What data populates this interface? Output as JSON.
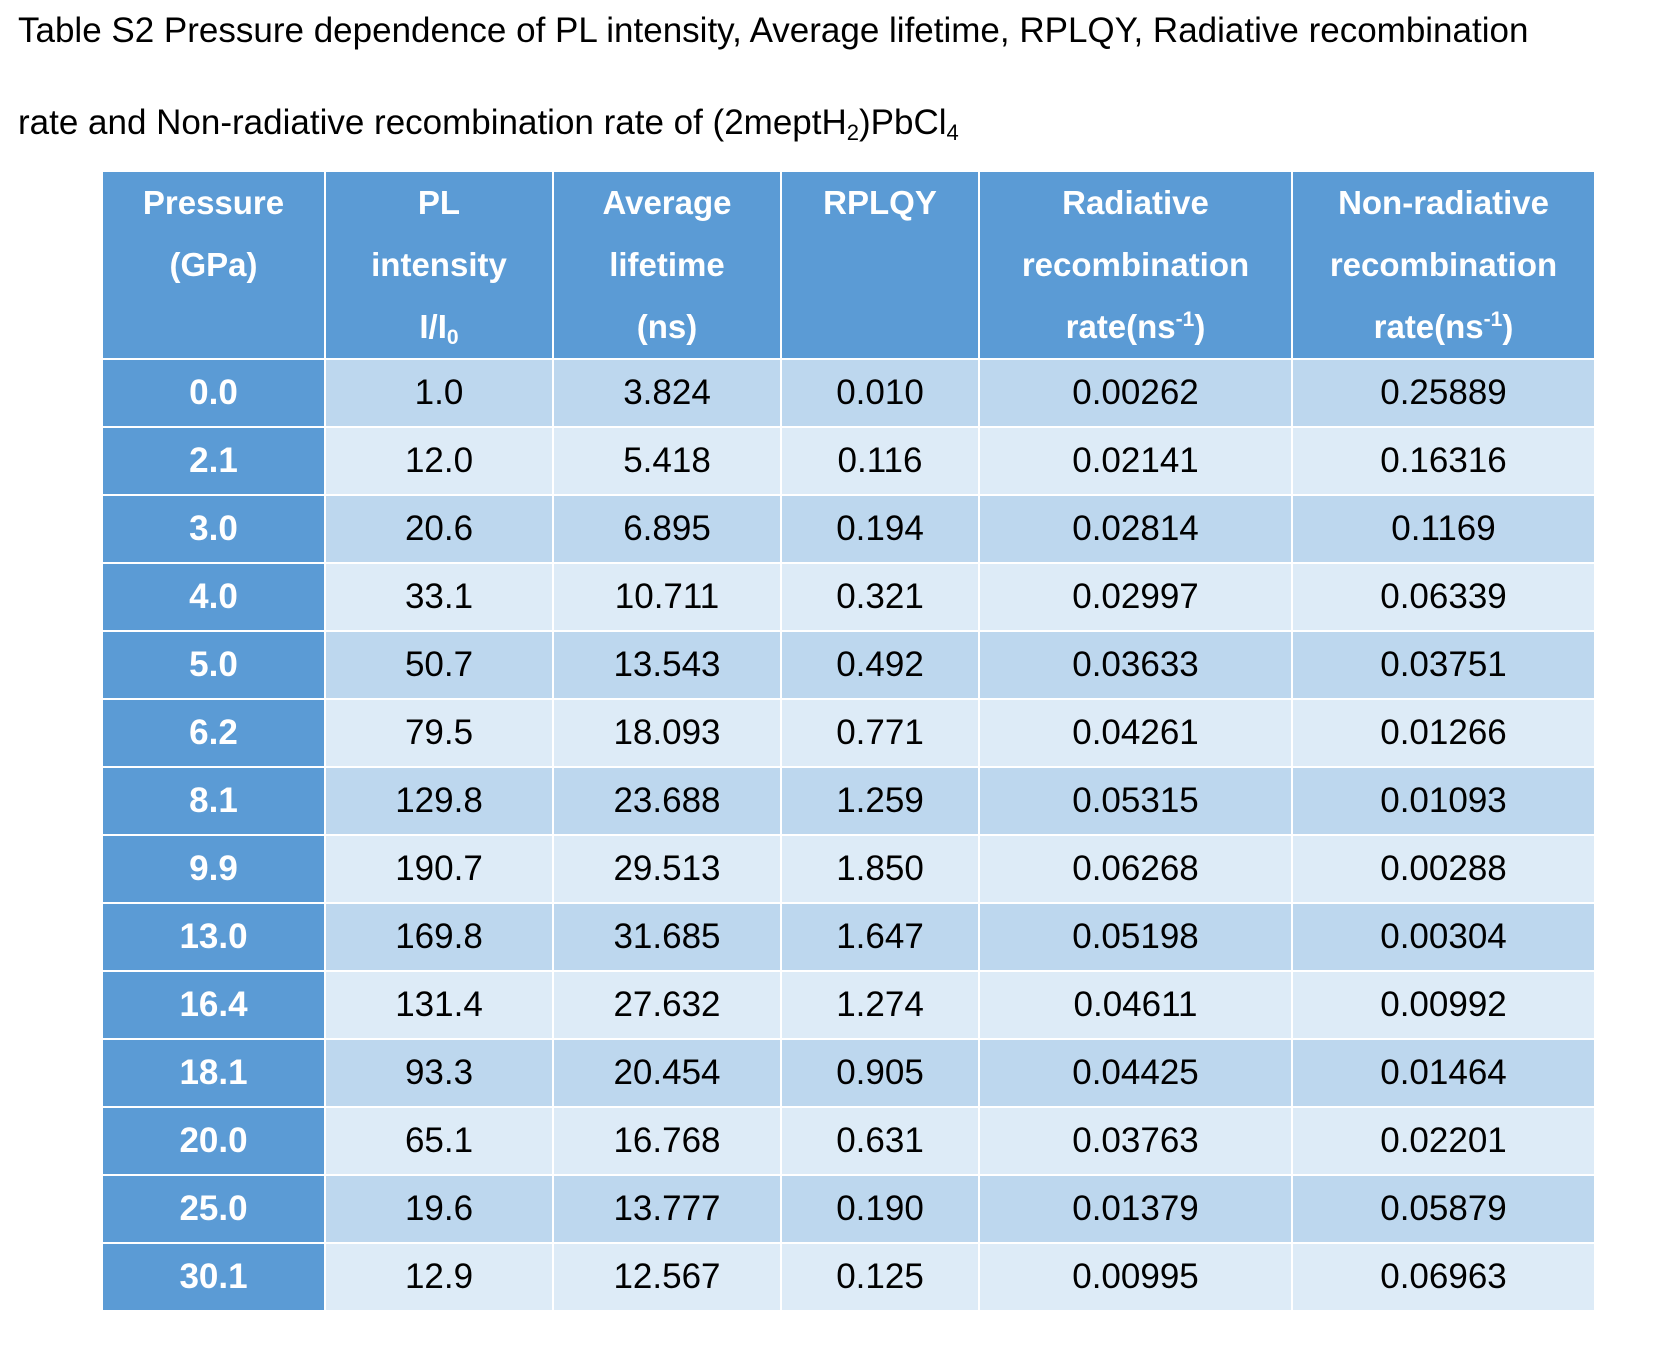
{
  "caption": {
    "line1": "Table S2 Pressure dependence of PL intensity, Average lifetime, RPLQY, Radiative recombination",
    "line2_prefix": "rate and Non-radiative recombination rate of (2meptH",
    "line2_sub1": "2",
    "line2_mid": ")PbCl",
    "line2_sub2": "4"
  },
  "table": {
    "headers": {
      "pressure": {
        "line1": "Pressure",
        "line2": "(GPa)"
      },
      "pl": {
        "line1": "PL",
        "line2": "intensity",
        "line3_prefix": "I/I",
        "line3_sub": "0"
      },
      "lifetime": {
        "line1": "Average",
        "line2": "lifetime",
        "line3": "(ns)"
      },
      "rplqy": {
        "line1": "RPLQY"
      },
      "radiative": {
        "line1": "Radiative",
        "line2": "recombination",
        "line3_prefix": "rate(ns",
        "line3_sup": "-1",
        "line3_suffix": ")"
      },
      "nonradiative": {
        "line1": "Non-radiative",
        "line2": "recombination",
        "line3_prefix": "rate(ns",
        "line3_sup": "-1",
        "line3_suffix": ")"
      }
    },
    "rows": [
      [
        "0.0",
        "1.0",
        "3.824",
        "0.010",
        "0.00262",
        "0.25889"
      ],
      [
        "2.1",
        "12.0",
        "5.418",
        "0.116",
        "0.02141",
        "0.16316"
      ],
      [
        "3.0",
        "20.6",
        "6.895",
        "0.194",
        "0.02814",
        "0.1169"
      ],
      [
        "4.0",
        "33.1",
        "10.711",
        "0.321",
        "0.02997",
        "0.06339"
      ],
      [
        "5.0",
        "50.7",
        "13.543",
        "0.492",
        "0.03633",
        "0.03751"
      ],
      [
        "6.2",
        "79.5",
        "18.093",
        "0.771",
        "0.04261",
        "0.01266"
      ],
      [
        "8.1",
        "129.8",
        "23.688",
        "1.259",
        "0.05315",
        "0.01093"
      ],
      [
        "9.9",
        "190.7",
        "29.513",
        "1.850",
        "0.06268",
        "0.00288"
      ],
      [
        "13.0",
        "169.8",
        "31.685",
        "1.647",
        "0.05198",
        "0.00304"
      ],
      [
        "16.4",
        "131.4",
        "27.632",
        "1.274",
        "0.04611",
        "0.00992"
      ],
      [
        "18.1",
        "93.3",
        "20.454",
        "0.905",
        "0.04425",
        "0.01464"
      ],
      [
        "20.0",
        "65.1",
        "16.768",
        "0.631",
        "0.03763",
        "0.02201"
      ],
      [
        "25.0",
        "19.6",
        "13.777",
        "0.190",
        "0.01379",
        "0.05879"
      ],
      [
        "30.1",
        "12.9",
        "12.567",
        "0.125",
        "0.00995",
        "0.06963"
      ]
    ]
  },
  "colors": {
    "header_blue": "#5b9bd5",
    "band_dark": "#bdd7ee",
    "band_light": "#ddebf7"
  }
}
